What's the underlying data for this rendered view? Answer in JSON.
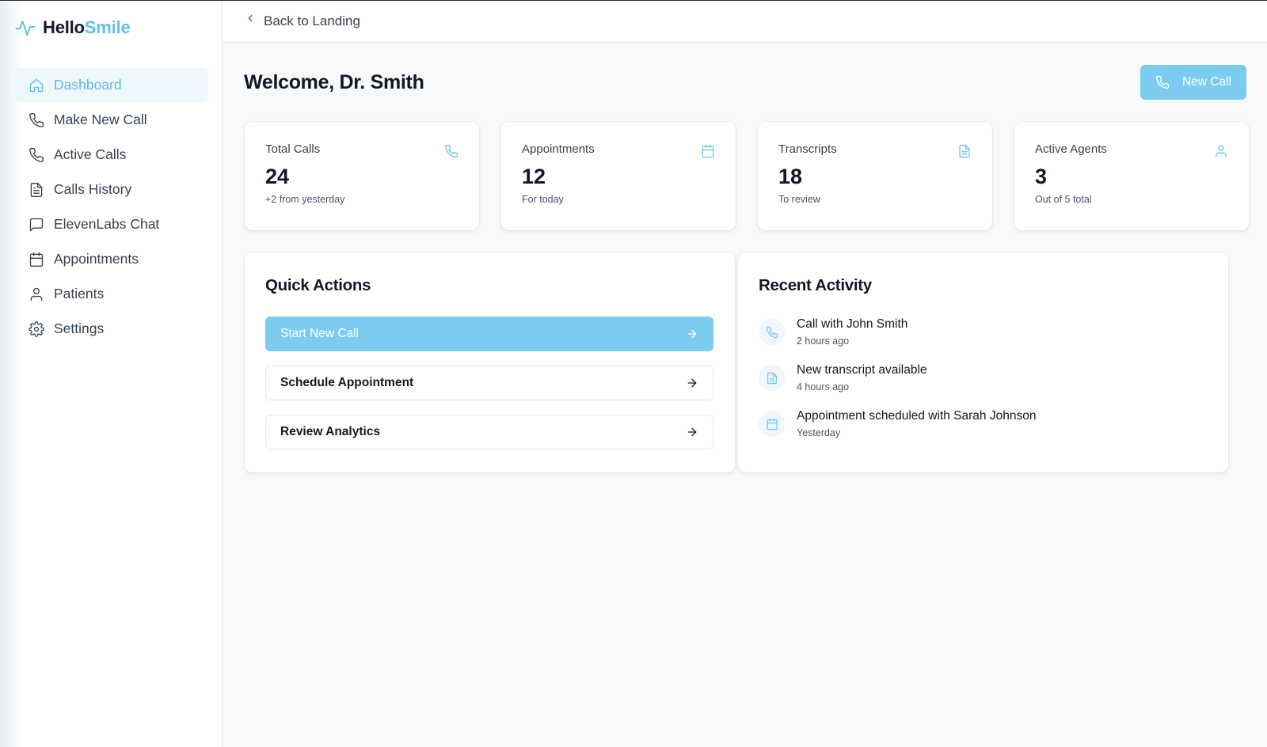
{
  "brand": {
    "name_part1": "Hello",
    "name_part2": "Smile"
  },
  "sidebar": {
    "items": [
      {
        "label": "Dashboard",
        "icon": "home-icon",
        "active": true
      },
      {
        "label": "Make New Call",
        "icon": "phone-icon"
      },
      {
        "label": "Active Calls",
        "icon": "phone-icon"
      },
      {
        "label": "Calls History",
        "icon": "file-text-icon"
      },
      {
        "label": "ElevenLabs Chat",
        "icon": "message-square-icon"
      },
      {
        "label": "Appointments",
        "icon": "calendar-icon"
      },
      {
        "label": "Patients",
        "icon": "user-icon"
      },
      {
        "label": "Settings",
        "icon": "gear-icon"
      }
    ]
  },
  "topbar": {
    "back_label": "Back to Landing"
  },
  "header": {
    "title": "Welcome, Dr. Smith",
    "new_call_label": "New Call"
  },
  "stats": [
    {
      "title": "Total Calls",
      "value": "24",
      "sub": "+2 from yesterday",
      "icon": "phone-icon"
    },
    {
      "title": "Appointments",
      "value": "12",
      "sub": "For today",
      "icon": "calendar-icon"
    },
    {
      "title": "Transcripts",
      "value": "18",
      "sub": "To review",
      "icon": "file-text-icon"
    },
    {
      "title": "Active Agents",
      "value": "3",
      "sub": "Out of 5 total",
      "icon": "user-icon"
    }
  ],
  "quick_actions": {
    "title": "Quick Actions",
    "items": [
      {
        "label": "Start New Call"
      },
      {
        "label": "Schedule Appointment"
      },
      {
        "label": "Review Analytics"
      }
    ]
  },
  "recent_activity": {
    "title": "Recent Activity",
    "items": [
      {
        "title": "Call with John Smith",
        "time": "2 hours ago",
        "icon": "phone-icon"
      },
      {
        "title": "New transcript available",
        "time": "4 hours ago",
        "icon": "file-text-icon"
      },
      {
        "title": "Appointment scheduled with Sarah Johnson",
        "time": "Yesterday",
        "icon": "calendar-icon"
      }
    ]
  },
  "colors": {
    "accent": "#7cccf0",
    "brand": "#5fc1e8",
    "active_nav_bg": "#eef7fc"
  }
}
